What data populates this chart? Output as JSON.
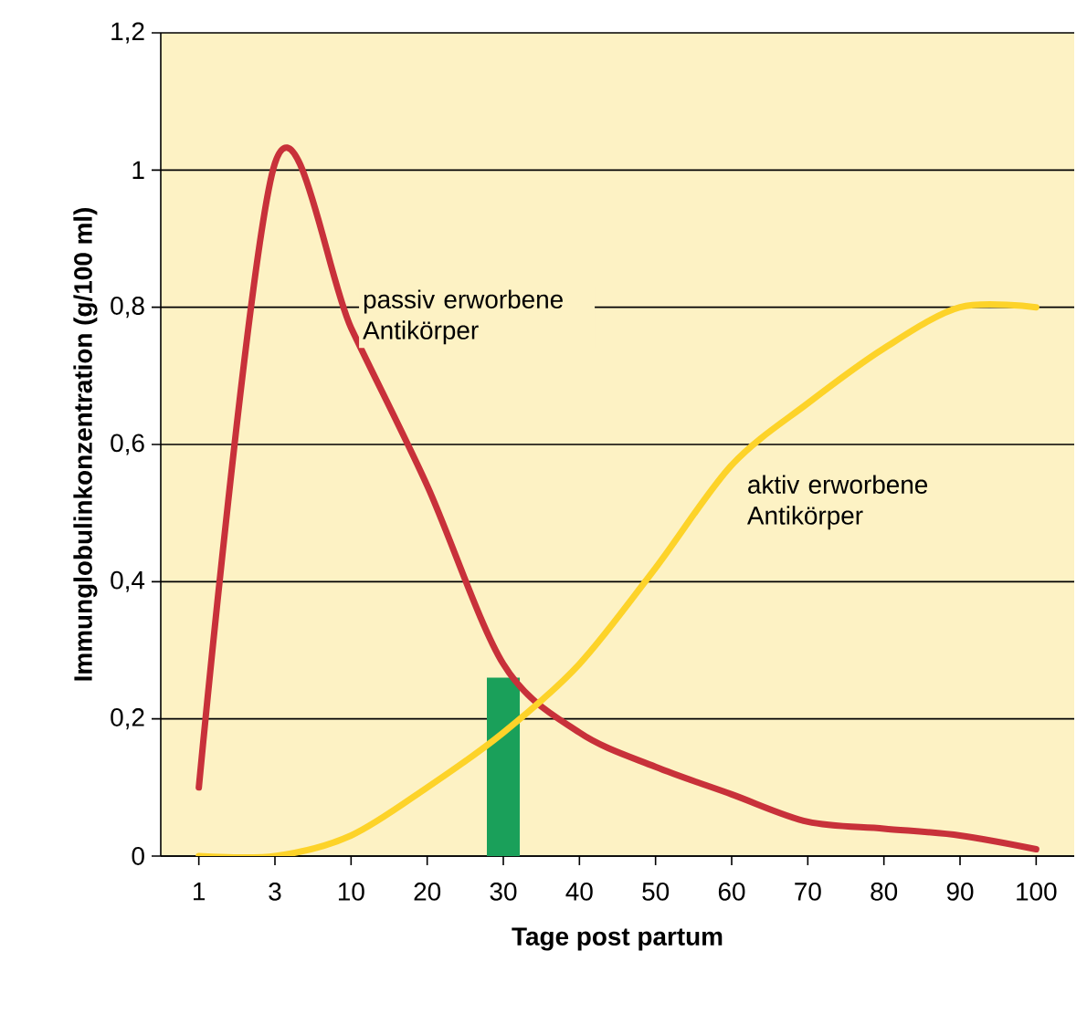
{
  "chart_data": {
    "type": "line",
    "xlabel": "Tage post partum",
    "ylabel": "Immunglobulinkonzentration (g/100 ml)",
    "categories": [
      "1",
      "3",
      "10",
      "20",
      "30",
      "40",
      "50",
      "60",
      "70",
      "80",
      "90",
      "100"
    ],
    "series": [
      {
        "type": "bar",
        "color": "#1aa05a",
        "values": [
          null,
          null,
          null,
          null,
          0.26,
          null,
          null,
          null,
          null,
          null,
          null,
          null
        ]
      },
      {
        "name": "passiv erworbene Antikörper",
        "color": "#c8313a",
        "values": [
          0.1,
          1.01,
          0.77,
          0.54,
          0.28,
          0.18,
          0.13,
          0.09,
          0.05,
          0.04,
          0.03,
          0.01
        ]
      },
      {
        "name": "aktiv erworbene Antikörper",
        "color": "#fdd329",
        "values": [
          0,
          0,
          0.03,
          0.1,
          0.18,
          0.28,
          0.42,
          0.57,
          0.66,
          0.74,
          0.8,
          0.8
        ]
      }
    ],
    "ylim": [
      0,
      1.2
    ],
    "yticks": [
      0,
      {
        "value": 0.2,
        "label": "0,2"
      },
      {
        "value": 0.4,
        "label": "0,4"
      },
      {
        "value": 0.6,
        "label": "0,6"
      },
      {
        "value": 0.8,
        "label": "0,8"
      },
      1,
      {
        "value": 1.2,
        "label": "1,2"
      }
    ],
    "grid": "y"
  }
}
